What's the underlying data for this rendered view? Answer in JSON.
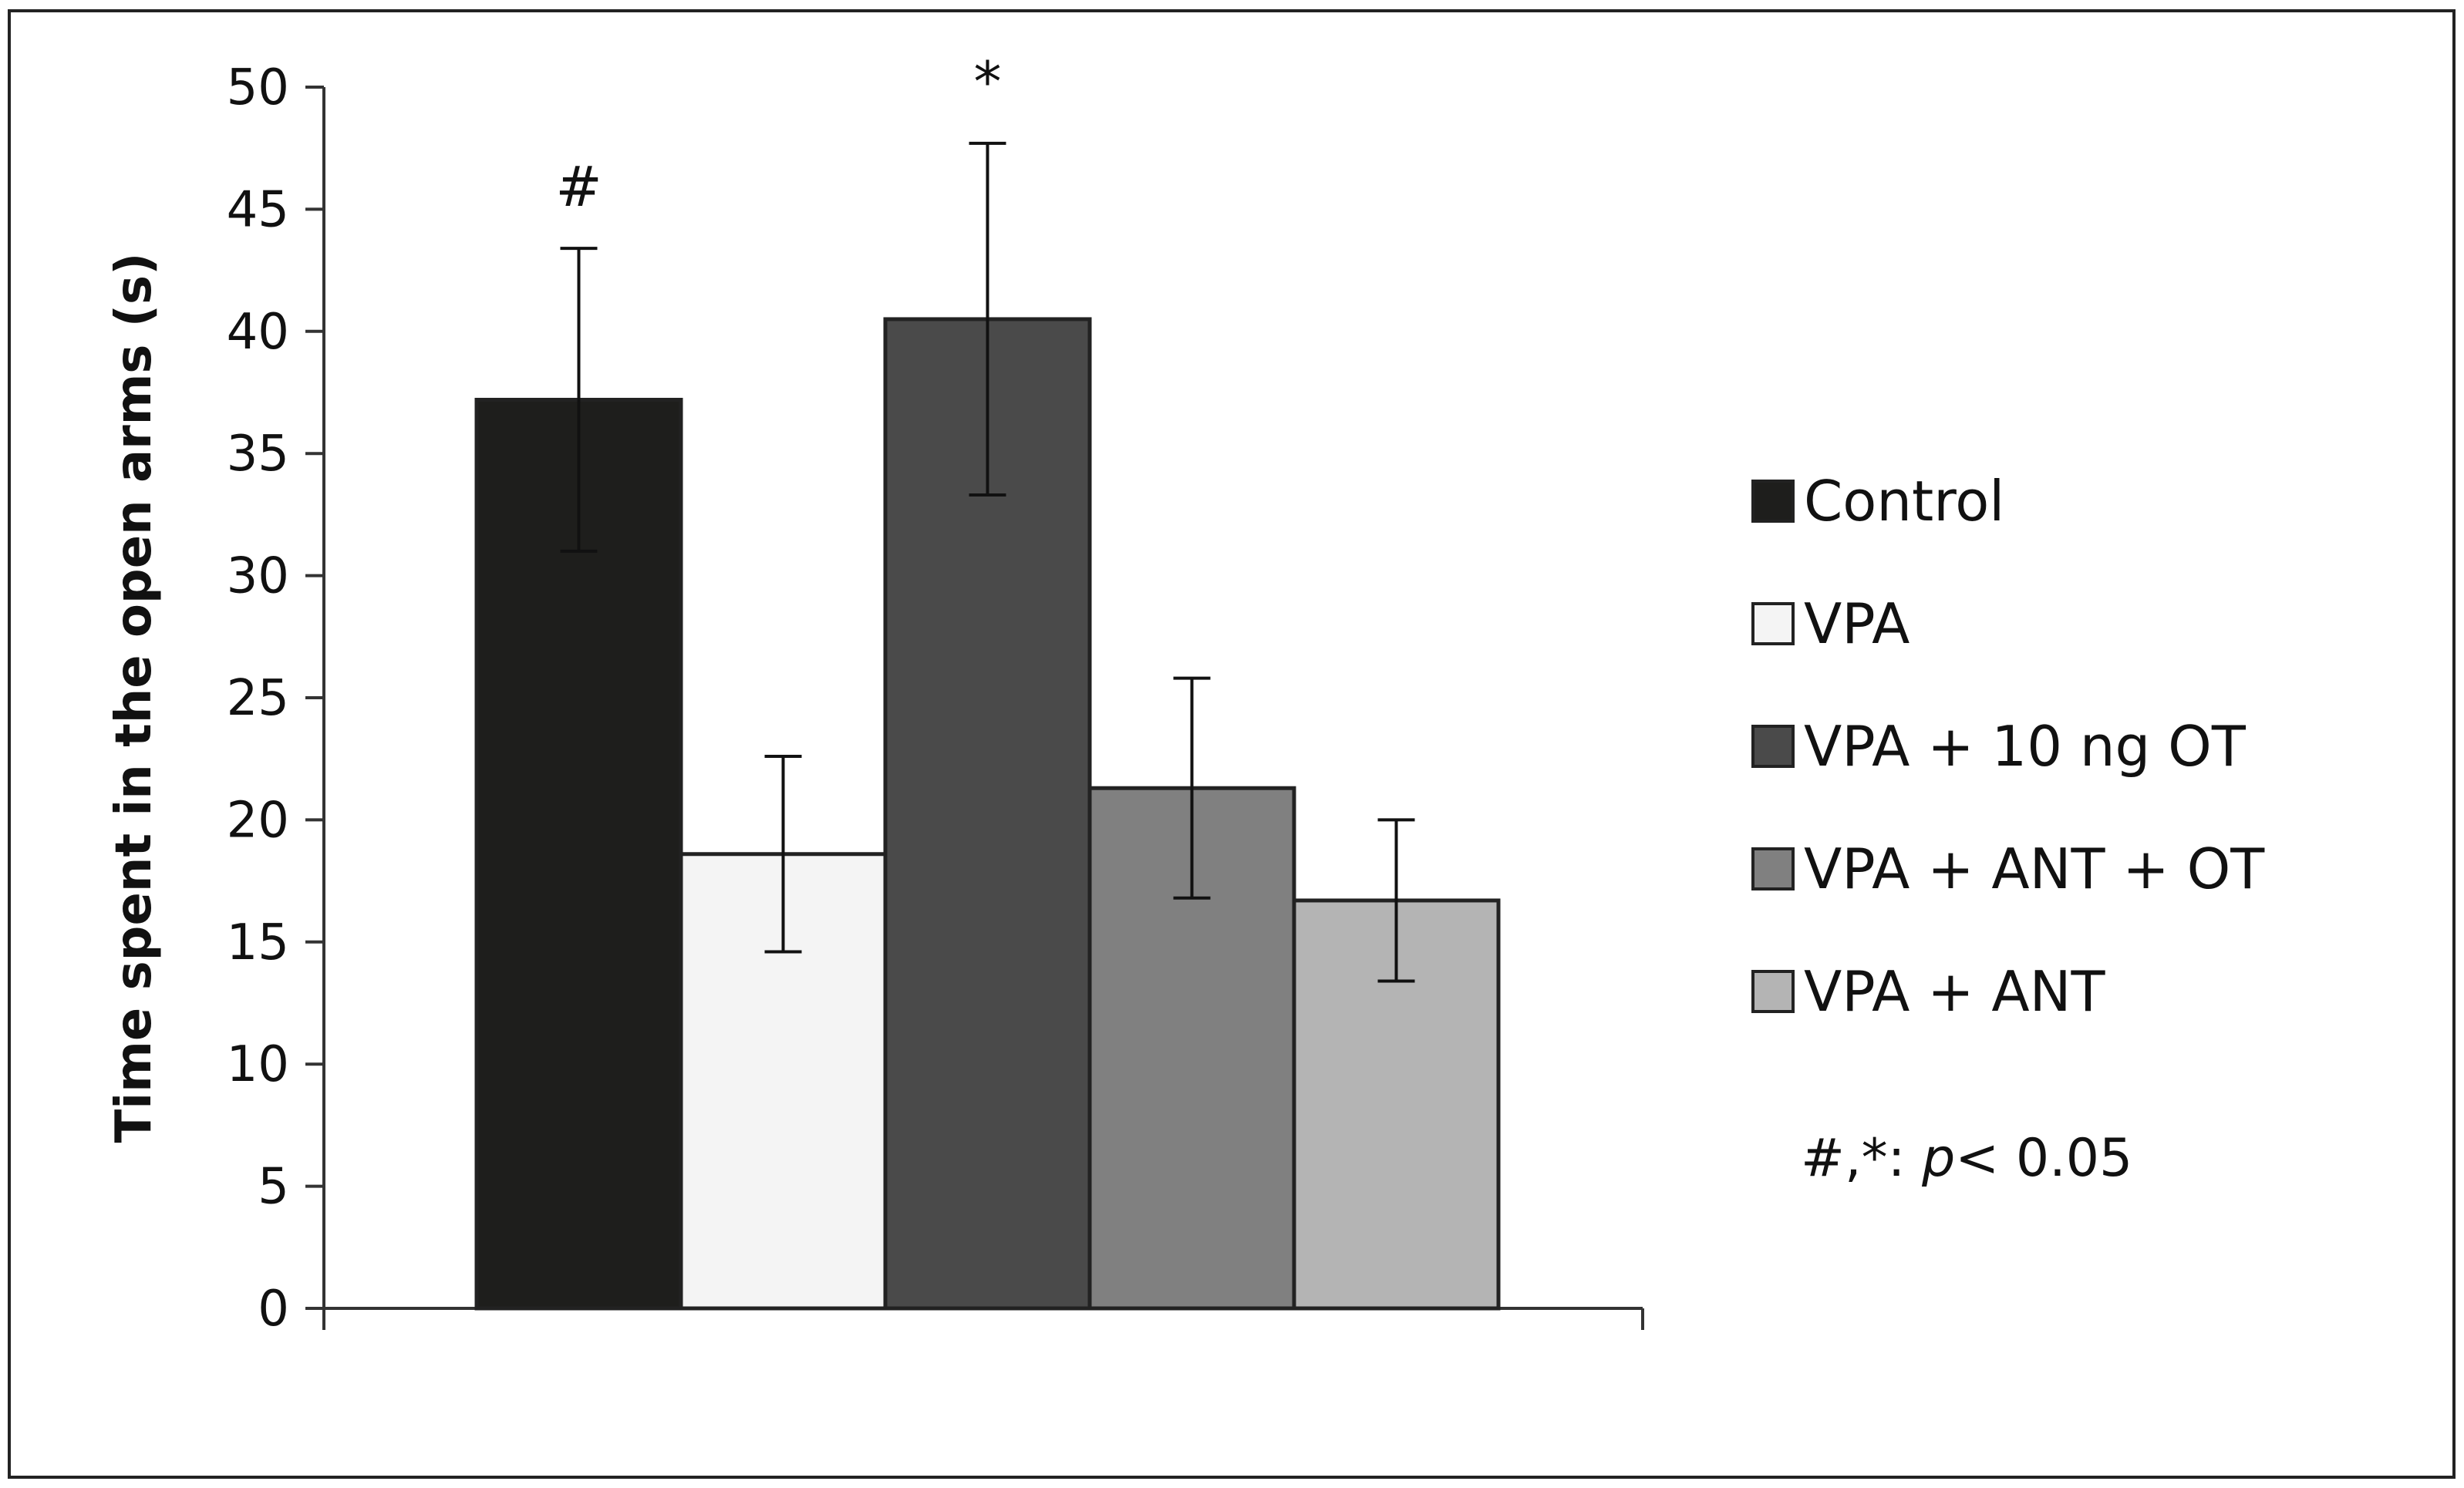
{
  "chart_data": {
    "type": "bar",
    "title": "",
    "xlabel": "",
    "ylabel": "Time spent in the open arms (s)",
    "ylim": [
      0,
      50
    ],
    "yticks": [
      0,
      5,
      10,
      15,
      20,
      25,
      30,
      35,
      40,
      45,
      50
    ],
    "grid": false,
    "legend_position": "right",
    "series": [
      {
        "name": "Control",
        "value": 37.2,
        "error": 6.2,
        "color": "#1e1e1c",
        "annotation": "#"
      },
      {
        "name": "VPA",
        "value": 18.6,
        "error": 4.0,
        "color": "#f4f4f4",
        "annotation": ""
      },
      {
        "name": "VPA + 10 ng OT",
        "value": 40.5,
        "error": 7.2,
        "color": "#4a4a4a",
        "annotation": "*"
      },
      {
        "name": "VPA + ANT + OT",
        "value": 21.3,
        "error": 4.5,
        "color": "#808080",
        "annotation": ""
      },
      {
        "name": "VPA + ANT",
        "value": 16.7,
        "error": 3.3,
        "color": "#b4b4b4",
        "annotation": ""
      }
    ],
    "note": {
      "prefix": "#,*: ",
      "italic": "p",
      "suffix": "< 0.05"
    }
  }
}
